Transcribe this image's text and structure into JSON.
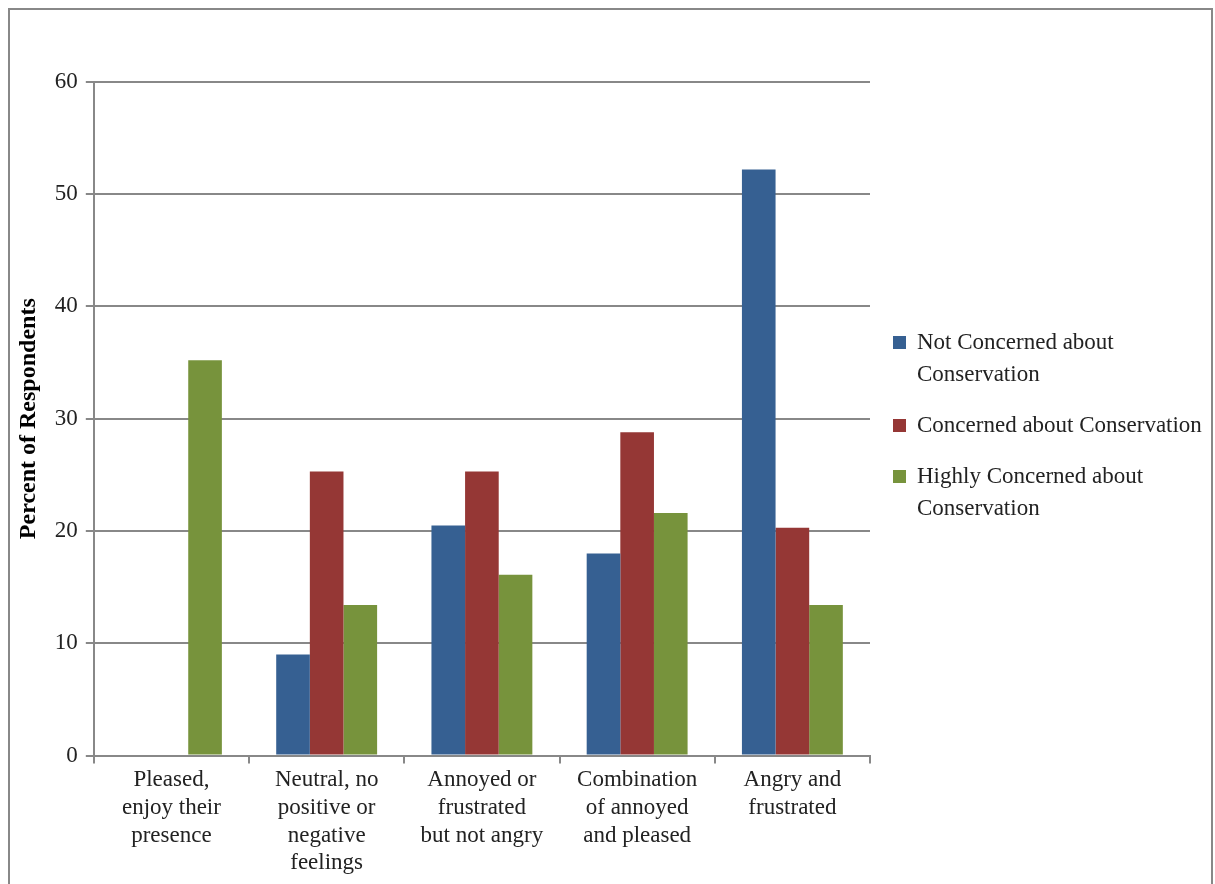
{
  "chart_data": {
    "type": "bar",
    "ylabel": "Percent of Respondents",
    "categories": [
      "Pleased, enjoy their presence",
      "Neutral, no positive or negative feelings",
      "Annoyed or frustrated but not angry",
      "Combination of annoyed and pleased",
      "Angry and frustrated"
    ],
    "series": [
      {
        "name": "Not Concerned about Conservation",
        "color": "#366092",
        "values": [
          0,
          9.0,
          20.5,
          18.0,
          52.2
        ]
      },
      {
        "name": "Concerned about Conservation",
        "color": "#953735",
        "values": [
          0,
          25.3,
          25.3,
          28.8,
          20.3
        ]
      },
      {
        "name": "Highly Concerned about Conservation",
        "color": "#77933c",
        "values": [
          35.2,
          13.4,
          16.1,
          21.6,
          13.4
        ]
      }
    ],
    "ylim": [
      0,
      60
    ],
    "yticks": [
      0,
      10,
      20,
      30,
      40,
      50,
      60
    ],
    "grid": "y",
    "legend": "right"
  }
}
